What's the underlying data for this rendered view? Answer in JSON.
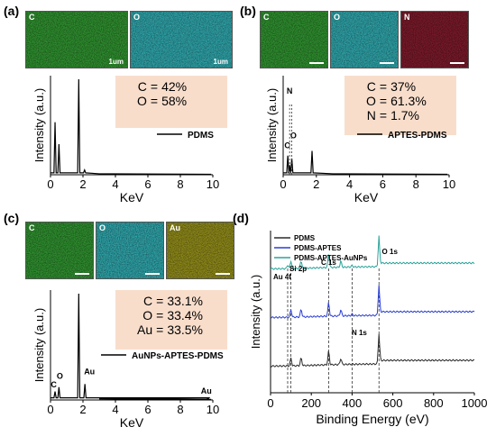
{
  "panels": {
    "a": {
      "label": "(a)",
      "maps": [
        {
          "element": "C",
          "scale": "1um",
          "color": "#2f8f2f"
        },
        {
          "element": "O",
          "scale": "1um",
          "color": "#2fa3a8"
        }
      ],
      "composition": [
        {
          "el": "C",
          "eq": "=",
          "val": "42%"
        },
        {
          "el": "O",
          "eq": "=",
          "val": "58%"
        }
      ],
      "legend": "PDMS"
    },
    "b": {
      "label": "(b)",
      "maps": [
        {
          "element": "C",
          "scale": "",
          "color": "#2f8f2f"
        },
        {
          "element": "O",
          "scale": "",
          "color": "#2fa3a8"
        },
        {
          "element": "N",
          "scale": "",
          "color": "#7a1a2a"
        }
      ],
      "composition": [
        {
          "el": "C",
          "eq": "=",
          "val": "37%"
        },
        {
          "el": "O",
          "eq": "=",
          "val": "61.3%"
        },
        {
          "el": "N",
          "eq": "=",
          "val": "1.7%"
        }
      ],
      "legend": "APTES-PDMS"
    },
    "c": {
      "label": "(c)",
      "maps": [
        {
          "element": "C",
          "scale": "",
          "color": "#2f8f2f"
        },
        {
          "element": "O",
          "scale": "",
          "color": "#2fa3a8"
        },
        {
          "element": "Au",
          "scale": "",
          "color": "#8f8a1a"
        }
      ],
      "composition": [
        {
          "el": "C",
          "eq": "=",
          "val": "33.1%"
        },
        {
          "el": "O",
          "eq": "=",
          "val": "33.4%"
        },
        {
          "el": "Au",
          "eq": "=",
          "val": "33.5%"
        }
      ],
      "legend": "AuNPs-APTES-PDMS"
    },
    "d": {
      "label": "(d)"
    }
  },
  "chart_data": [
    {
      "panel": "a",
      "type": "line",
      "xlabel": "KeV",
      "ylabel": "Intensity (a.u.)",
      "xlim": [
        0,
        10
      ],
      "xticks": [
        "0",
        "2",
        "4",
        "6",
        "8",
        "10"
      ],
      "series": [
        {
          "name": "PDMS",
          "color": "#000000"
        }
      ],
      "peaks": [
        {
          "x": 0.28,
          "y": 0.55
        },
        {
          "x": 0.52,
          "y": 0.32
        },
        {
          "x": 1.74,
          "y": 1.0
        },
        {
          "x": 2.1,
          "y": 0.05
        }
      ],
      "peak_labels": []
    },
    {
      "panel": "b",
      "type": "line",
      "xlabel": "KeV",
      "ylabel": "Intensity (a.u.)",
      "xlim": [
        0,
        10
      ],
      "xticks": [
        "0",
        "2",
        "4",
        "6",
        "8",
        "10"
      ],
      "series": [
        {
          "name": "APTES-PDMS",
          "color": "#000000"
        }
      ],
      "peaks": [
        {
          "x": 0.28,
          "y": 0.2
        },
        {
          "x": 0.39,
          "y": 0.1
        },
        {
          "x": 0.52,
          "y": 0.17
        },
        {
          "x": 1.74,
          "y": 0.25
        }
      ],
      "peak_labels": [
        {
          "text": "C",
          "x": 0.25,
          "y": 0.28
        },
        {
          "text": "N",
          "x": 0.39,
          "y": 0.85
        },
        {
          "text": "O",
          "x": 0.62,
          "y": 0.38
        }
      ]
    },
    {
      "panel": "c",
      "type": "line",
      "xlabel": "KeV",
      "ylabel": "Intensity (a.u.)",
      "xlim": [
        0,
        10
      ],
      "xticks": [
        "0",
        "2",
        "4",
        "6",
        "8",
        "10"
      ],
      "series": [
        {
          "name": "AuNPs-APTES-PDMS",
          "color": "#000000"
        }
      ],
      "peaks": [
        {
          "x": 0.28,
          "y": 0.08
        },
        {
          "x": 0.52,
          "y": 0.12
        },
        {
          "x": 1.74,
          "y": 1.0
        },
        {
          "x": 2.12,
          "y": 0.15
        },
        {
          "x": 9.7,
          "y": 0.01
        }
      ],
      "peak_labels": [
        {
          "text": "C",
          "x": 0.2,
          "y": 0.12
        },
        {
          "text": "O",
          "x": 0.58,
          "y": 0.2
        },
        {
          "text": "Au",
          "x": 2.4,
          "y": 0.24
        },
        {
          "text": "Au",
          "x": 9.6,
          "y": 0.06
        }
      ]
    },
    {
      "panel": "d",
      "type": "line",
      "xlabel": "Binding Energy (eV)",
      "ylabel": "Intensity (a.u.)",
      "xlim": [
        0,
        1000
      ],
      "xticks": [
        "0",
        "200",
        "400",
        "600",
        "800",
        "1000"
      ],
      "series": [
        {
          "name": "PDMS",
          "color": "#2b2b2b",
          "offset": 0
        },
        {
          "name": "PDMS-APTES",
          "color": "#2a3fd6",
          "offset": 1
        },
        {
          "name": "PDMS-APTES-AuNPs",
          "color": "#2aa39a",
          "offset": 2
        }
      ],
      "peaks": [
        {
          "x": 84,
          "y": 0.12
        },
        {
          "x": 100,
          "y": 0.25
        },
        {
          "x": 150,
          "y": 0.25
        },
        {
          "x": 285,
          "y": 0.45
        },
        {
          "x": 345,
          "y": 0.2
        },
        {
          "x": 400,
          "y": 0.05
        },
        {
          "x": 532,
          "y": 1.0
        }
      ],
      "dashed_lines": [
        84,
        100,
        285,
        400,
        532
      ],
      "peak_labels": [
        {
          "text": "Au 4f",
          "x": 84
        },
        {
          "text": "Si 2p",
          "x": 100
        },
        {
          "text": "C 1s",
          "x": 285
        },
        {
          "text": "N 1s",
          "x": 400
        },
        {
          "text": "O 1s",
          "x": 532
        }
      ]
    }
  ]
}
